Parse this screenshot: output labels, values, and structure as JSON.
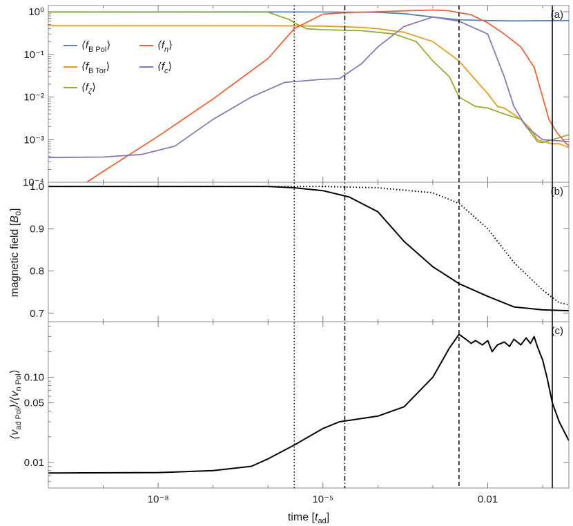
{
  "chart_data": [
    {
      "id": "a",
      "type": "line",
      "panel_label": "(a)",
      "x_scale": "log",
      "y_scale": "log",
      "xlim": [
        1e-10,
        0.3
      ],
      "ylim": [
        0.0001,
        1.4
      ],
      "ytick_labels": [
        "10⁻⁴",
        "10⁻³",
        "10⁻²",
        "10⁻¹",
        "10⁰"
      ],
      "ytick_values": [
        0.0001,
        0.001,
        0.01,
        0.1,
        1
      ],
      "legend_position": "upper-left",
      "series": [
        {
          "name": "⟨f_B Pol⟩",
          "label_main": "⟨f",
          "label_sub": "B Pol",
          "label_end": "⟩",
          "color": "#5e81b5",
          "points": [
            [
              1e-10,
              0.99
            ],
            [
              1e-06,
              0.99
            ],
            [
              1e-05,
              0.985
            ],
            [
              0.0001,
              0.97
            ],
            [
              0.0003,
              0.9
            ],
            [
              0.001,
              0.75
            ],
            [
              0.003,
              0.65
            ],
            [
              0.01,
              0.62
            ],
            [
              0.03,
              0.61
            ],
            [
              0.3,
              0.62
            ]
          ]
        },
        {
          "name": "⟨f_B Tor⟩",
          "label_main": "⟨f",
          "label_sub": "B Tor",
          "label_end": "⟩",
          "color": "#e19c24",
          "points": [
            [
              1e-10,
              0.47
            ],
            [
              1e-06,
              0.47
            ],
            [
              1e-05,
              0.46
            ],
            [
              5e-05,
              0.43
            ],
            [
              0.0001,
              0.4
            ],
            [
              0.0003,
              0.33
            ],
            [
              0.001,
              0.2
            ],
            [
              0.003,
              0.07
            ],
            [
              0.006,
              0.025
            ],
            [
              0.01,
              0.012
            ],
            [
              0.015,
              0.006
            ],
            [
              0.02,
              0.0055
            ],
            [
              0.04,
              0.003
            ],
            [
              0.06,
              0.0018
            ],
            [
              0.08,
              0.001
            ],
            [
              0.1,
              0.0009
            ],
            [
              0.15,
              0.0008
            ],
            [
              0.2,
              0.0008
            ],
            [
              0.3,
              0.00065
            ]
          ]
        },
        {
          "name": "⟨f_ζ⟩",
          "label_main": "⟨f",
          "label_sub": "ζ",
          "label_end": "⟩",
          "color": "#8fb032",
          "points": [
            [
              1e-10,
              0.99
            ],
            [
              1e-06,
              0.98
            ],
            [
              2.5e-06,
              0.65
            ],
            [
              3e-06,
              0.55
            ],
            [
              5e-06,
              0.4
            ],
            [
              1e-05,
              0.38
            ],
            [
              5e-05,
              0.36
            ],
            [
              0.0001,
              0.33
            ],
            [
              0.0002,
              0.3
            ],
            [
              0.0005,
              0.2
            ],
            [
              0.001,
              0.07
            ],
            [
              0.002,
              0.03
            ],
            [
              0.003,
              0.01
            ],
            [
              0.006,
              0.006
            ],
            [
              0.01,
              0.0055
            ],
            [
              0.02,
              0.004
            ],
            [
              0.04,
              0.003
            ],
            [
              0.06,
              0.0015
            ],
            [
              0.08,
              0.0009
            ],
            [
              0.1,
              0.00085
            ],
            [
              0.15,
              0.001
            ],
            [
              0.3,
              0.0013
            ]
          ]
        },
        {
          "name": "⟨f_n⟩",
          "label_main": "⟨f",
          "label_sub": "n",
          "label_end": "⟩",
          "color": "#eb6235",
          "points": [
            [
              5e-10,
              0.0001
            ],
            [
              1e-09,
              0.00018
            ],
            [
              1e-08,
              0.0012
            ],
            [
              1e-07,
              0.009
            ],
            [
              1e-06,
              0.08
            ],
            [
              3e-06,
              0.4
            ],
            [
              1e-05,
              0.88
            ],
            [
              3e-05,
              0.96
            ],
            [
              0.0001,
              1.0
            ],
            [
              0.0003,
              1.05
            ],
            [
              0.001,
              1.1
            ],
            [
              0.002,
              1.05
            ],
            [
              0.005,
              0.85
            ],
            [
              0.01,
              0.55
            ],
            [
              0.02,
              0.3
            ],
            [
              0.04,
              0.15
            ],
            [
              0.07,
              0.05
            ],
            [
              0.1,
              0.01
            ],
            [
              0.13,
              0.003
            ],
            [
              0.18,
              0.0015
            ],
            [
              0.25,
              0.0009
            ],
            [
              0.3,
              0.0007
            ]
          ]
        },
        {
          "name": "⟨f_c⟩",
          "label_main": "⟨f",
          "label_sub": "c",
          "label_end": "⟩",
          "color": "#8778b3",
          "points": [
            [
              1e-10,
              0.00038
            ],
            [
              1e-09,
              0.00039
            ],
            [
              5e-09,
              0.00045
            ],
            [
              2e-08,
              0.0007
            ],
            [
              1e-07,
              0.003
            ],
            [
              5e-07,
              0.01
            ],
            [
              2e-06,
              0.022
            ],
            [
              1e-05,
              0.026
            ],
            [
              2e-05,
              0.027
            ],
            [
              5e-05,
              0.06
            ],
            [
              0.0001,
              0.15
            ],
            [
              0.0003,
              0.45
            ],
            [
              0.001,
              0.75
            ],
            [
              0.003,
              0.6
            ],
            [
              0.01,
              0.3
            ],
            [
              0.02,
              0.03
            ],
            [
              0.03,
              0.006
            ],
            [
              0.05,
              0.002
            ],
            [
              0.1,
              0.001
            ],
            [
              0.3,
              0.0009
            ]
          ]
        }
      ]
    },
    {
      "id": "b",
      "type": "line",
      "panel_label": "(b)",
      "x_scale": "log",
      "y_scale": "linear",
      "ylabel_main": "magnetic field [",
      "ylabel_sym": "B",
      "ylabel_sub": "0",
      "ylabel_end": "]",
      "xlim": [
        1e-10,
        0.3
      ],
      "ylim": [
        0.68,
        1.01
      ],
      "ytick_labels": [
        "0.7",
        "0.8",
        "0.9",
        "1.0"
      ],
      "ytick_values": [
        0.7,
        0.8,
        0.9,
        1.0
      ],
      "series": [
        {
          "style": "solid",
          "color": "#000000",
          "points": [
            [
              1e-10,
              1.0
            ],
            [
              1e-06,
              1.0
            ],
            [
              3e-06,
              0.997
            ],
            [
              1e-05,
              0.99
            ],
            [
              3e-05,
              0.975
            ],
            [
              0.0001,
              0.94
            ],
            [
              0.0003,
              0.87
            ],
            [
              0.001,
              0.81
            ],
            [
              0.003,
              0.77
            ],
            [
              0.01,
              0.74
            ],
            [
              0.03,
              0.715
            ],
            [
              0.1,
              0.708
            ],
            [
              0.3,
              0.706
            ]
          ]
        },
        {
          "style": "dotted",
          "color": "#000000",
          "points": [
            [
              1e-10,
              1.0
            ],
            [
              1e-05,
              1.0
            ],
            [
              0.0001,
              0.997
            ],
            [
              0.001,
              0.985
            ],
            [
              0.003,
              0.96
            ],
            [
              0.01,
              0.9
            ],
            [
              0.03,
              0.82
            ],
            [
              0.1,
              0.755
            ],
            [
              0.2,
              0.725
            ],
            [
              0.3,
              0.72
            ]
          ]
        }
      ]
    },
    {
      "id": "c",
      "type": "line",
      "panel_label": "(c)",
      "x_scale": "log",
      "y_scale": "log",
      "ylabel_parts": [
        "⟨v",
        "ad Pol",
        "⟩/⟨v",
        "n Pol",
        "⟩"
      ],
      "xlabel_main": "time [",
      "xlabel_sym": "t",
      "xlabel_sub": "ad",
      "xlabel_end": "]",
      "xlim": [
        1e-10,
        0.3
      ],
      "ylim": [
        0.005,
        0.45
      ],
      "ytick_labels": [
        "0.01",
        "0.05",
        "0.10"
      ],
      "ytick_values": [
        0.01,
        0.05,
        0.1
      ],
      "xtick_labels": [
        "10⁻⁸",
        "10⁻⁵",
        "0.01"
      ],
      "xtick_values": [
        1e-08,
        1e-05,
        0.01
      ],
      "series": [
        {
          "style": "solid",
          "color": "#000000",
          "points": [
            [
              1e-10,
              0.0075
            ],
            [
              1e-08,
              0.0076
            ],
            [
              1e-07,
              0.008
            ],
            [
              5e-07,
              0.009
            ],
            [
              1e-06,
              0.011
            ],
            [
              3e-06,
              0.016
            ],
            [
              1e-05,
              0.025
            ],
            [
              2e-05,
              0.03
            ],
            [
              0.0001,
              0.035
            ],
            [
              0.0003,
              0.045
            ],
            [
              0.001,
              0.1
            ],
            [
              0.002,
              0.22
            ],
            [
              0.003,
              0.32
            ],
            [
              0.004,
              0.28
            ],
            [
              0.005,
              0.25
            ],
            [
              0.006,
              0.27
            ],
            [
              0.008,
              0.24
            ],
            [
              0.01,
              0.27
            ],
            [
              0.012,
              0.2
            ],
            [
              0.015,
              0.24
            ],
            [
              0.02,
              0.26
            ],
            [
              0.025,
              0.23
            ],
            [
              0.03,
              0.28
            ],
            [
              0.04,
              0.24
            ],
            [
              0.05,
              0.29
            ],
            [
              0.06,
              0.25
            ],
            [
              0.07,
              0.3
            ],
            [
              0.08,
              0.23
            ],
            [
              0.1,
              0.16
            ],
            [
              0.12,
              0.1
            ],
            [
              0.15,
              0.05
            ],
            [
              0.2,
              0.03
            ],
            [
              0.3,
              0.018
            ]
          ]
        }
      ]
    }
  ],
  "vertical_lines": [
    {
      "x": 3e-06,
      "style": "dotted"
    },
    {
      "x": 2.5e-05,
      "style": "dashdot"
    },
    {
      "x": 0.003,
      "style": "dashed"
    },
    {
      "x": 0.15,
      "style": "solid"
    }
  ]
}
